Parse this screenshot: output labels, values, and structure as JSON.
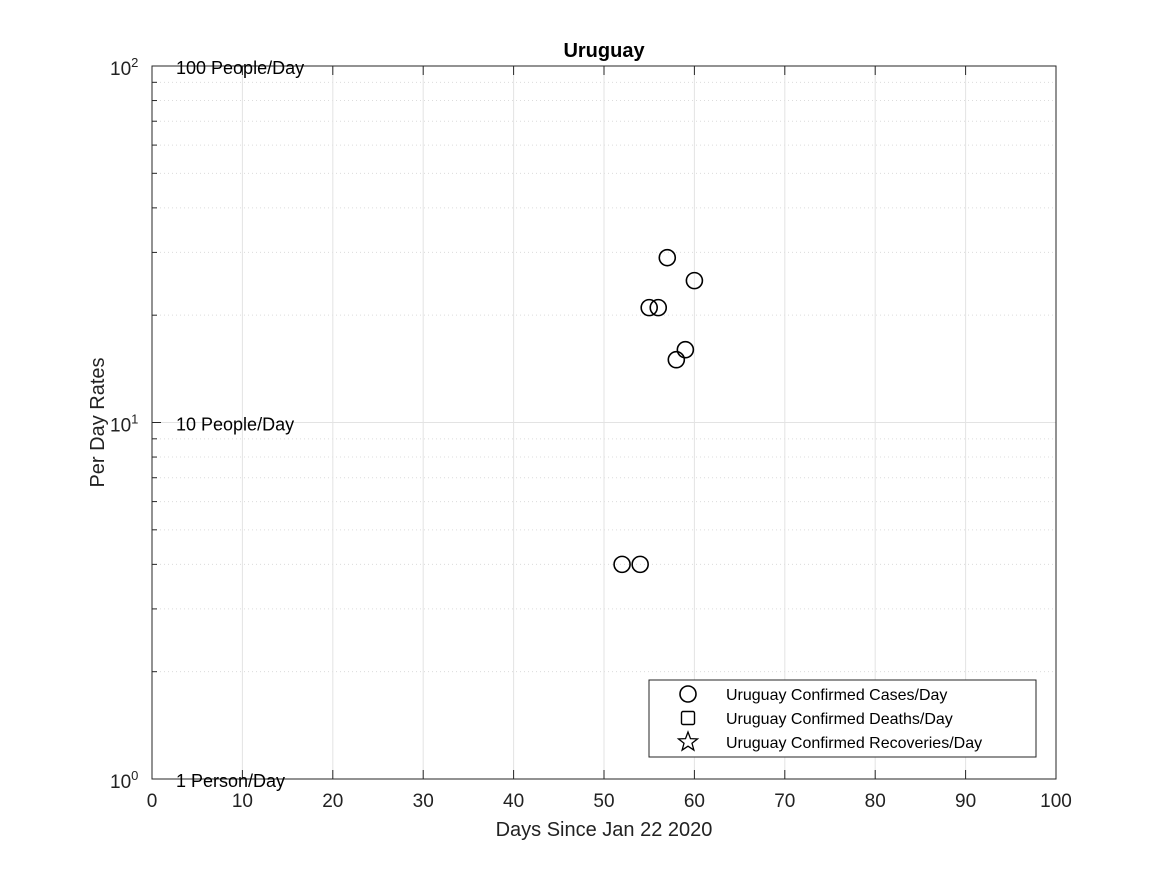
{
  "chart_data": {
    "type": "scatter",
    "title": "Uruguay",
    "xlabel": "Days Since Jan 22 2020",
    "ylabel": "Per Day Rates",
    "xlim": [
      0,
      100
    ],
    "ylim": [
      1,
      100
    ],
    "yscale": "log",
    "grid": true,
    "x_ticks": [
      0,
      10,
      20,
      30,
      40,
      50,
      60,
      70,
      80,
      90,
      100
    ],
    "y_ticks": [
      {
        "value": 1,
        "base": "10",
        "exp": "0"
      },
      {
        "value": 10,
        "base": "10",
        "exp": "1"
      },
      {
        "value": 100,
        "base": "10",
        "exp": "2"
      }
    ],
    "annotations": [
      {
        "text": "100 People/Day",
        "y": 100
      },
      {
        "text": "10 People/Day",
        "y": 10
      },
      {
        "text": "1 Person/Day",
        "y": 1
      }
    ],
    "legend_position": "bottom-right",
    "series": [
      {
        "name": "Uruguay Confirmed Cases/Day",
        "marker": "circle",
        "x": [
          52,
          54,
          55,
          56,
          57,
          58,
          59,
          60
        ],
        "y": [
          4,
          4,
          21,
          21,
          29,
          15,
          16,
          25
        ]
      },
      {
        "name": "Uruguay Confirmed Deaths/Day",
        "marker": "square",
        "x": [],
        "y": []
      },
      {
        "name": "Uruguay Confirmed Recoveries/Day",
        "marker": "star",
        "x": [],
        "y": []
      }
    ]
  }
}
